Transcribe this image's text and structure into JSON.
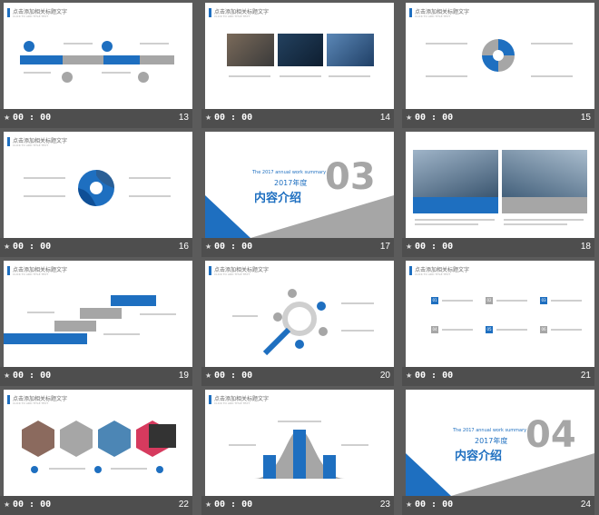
{
  "slides": [
    {
      "num": "13",
      "time": "00 : 00",
      "title": "点击添加相关标题文字",
      "sub": "CLICK TO ADD TITLE TEXT"
    },
    {
      "num": "14",
      "time": "00 : 00",
      "title": "点击添加相关标题文字",
      "sub": "CLICK TO ADD TITLE TEXT"
    },
    {
      "num": "15",
      "time": "00 : 00",
      "title": "点击添加相关标题文字",
      "sub": "CLICK TO ADD TITLE TEXT"
    },
    {
      "num": "16",
      "time": "00 : 00",
      "title": "点击添加相关标题文字",
      "sub": "CLICK TO ADD TITLE TEXT"
    },
    {
      "num": "17",
      "time": "00 : 00",
      "section": "内容介绍",
      "year": "2017年度",
      "summary": "The 2017 annual work summary",
      "bignum": "03"
    },
    {
      "num": "18",
      "time": "00 : 00"
    },
    {
      "num": "19",
      "time": "00 : 00",
      "title": "点击添加相关标题文字",
      "sub": "CLICK TO ADD TITLE TEXT"
    },
    {
      "num": "20",
      "time": "00 : 00",
      "title": "点击添加相关标题文字",
      "sub": "CLICK TO ADD TITLE TEXT"
    },
    {
      "num": "21",
      "time": "00 : 00",
      "title": "点击添加相关标题文字",
      "sub": "CLICK TO ADD TITLE TEXT",
      "labels": [
        "01",
        "02",
        "03",
        "04",
        "05",
        "06"
      ]
    },
    {
      "num": "22",
      "time": "00 : 00",
      "title": "点击添加相关标题文字",
      "sub": "CLICK TO ADD TITLE TEXT"
    },
    {
      "num": "23",
      "time": "00 : 00",
      "title": "点击添加相关标题文字",
      "sub": "CLICK TO ADD TITLE TEXT"
    },
    {
      "num": "24",
      "time": "00 : 00",
      "section": "内容介绍",
      "year": "2017年度",
      "summary": "The 2017 annual work summary",
      "bignum": "04"
    }
  ],
  "colors": {
    "accent": "#1e6fc0",
    "gray": "#a6a6a6",
    "background": "#5b5b5b"
  },
  "icons": {
    "timer": "star-icon"
  }
}
